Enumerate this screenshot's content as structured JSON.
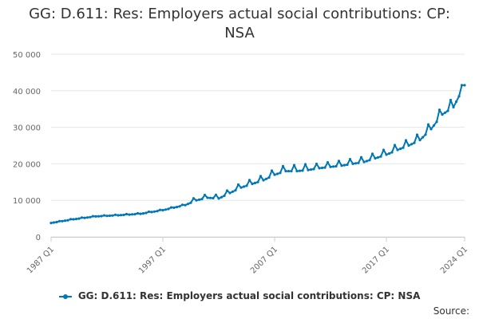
{
  "title_line1": "GG: D.611: Res: Employers actual social contributions: CP:",
  "title_line2": "NSA",
  "source_label": "Source:",
  "colors": {
    "series": "#0077b6",
    "grid": "#e6e6e6",
    "axis_text": "#666666"
  },
  "chart_data": {
    "type": "line",
    "title": "GG: D.611: Res: Employers actual social contributions: CP: NSA",
    "xlabel": "",
    "ylabel": "",
    "x_range": [
      "1987 Q1",
      "2024 Q1"
    ],
    "x_ticks": [
      "1987 Q1",
      "1997 Q1",
      "2007 Q1",
      "2017 Q1",
      "2024 Q1"
    ],
    "ylim": [
      0,
      50000
    ],
    "y_ticks": [
      0,
      10000,
      20000,
      30000,
      40000,
      50000
    ],
    "y_tick_labels": [
      "0",
      "10 000",
      "20 000",
      "30 000",
      "40 000",
      "50 000"
    ],
    "grid": true,
    "legend": "bottom",
    "series": [
      {
        "name": "GG: D.611: Res: Employers actual social contributions: CP: NSA",
        "x": [
          "1987 Q1",
          "1989 Q1",
          "1991 Q1",
          "1993 Q1",
          "1995 Q1",
          "1997 Q1",
          "1999 Q1",
          "2000 Q1",
          "2001 Q1",
          "2002 Q1",
          "2004 Q1",
          "2006 Q1",
          "2007 Q1",
          "2008 Q1",
          "2009 Q1",
          "2010 Q1",
          "2011 Q1",
          "2013 Q1",
          "2015 Q1",
          "2017 Q1",
          "2018 Q1",
          "2019 Q1",
          "2020 Q1",
          "2021 Q1",
          "2022 Q1",
          "2023 Q1",
          "2024 Q1"
        ],
        "values": [
          3800,
          4800,
          5600,
          5900,
          6300,
          7300,
          8700,
          10000,
          10700,
          10500,
          13500,
          15500,
          17000,
          18000,
          18000,
          18300,
          18800,
          19500,
          20500,
          22500,
          23800,
          25000,
          26500,
          29500,
          33500,
          35500,
          41500
        ]
      }
    ]
  }
}
